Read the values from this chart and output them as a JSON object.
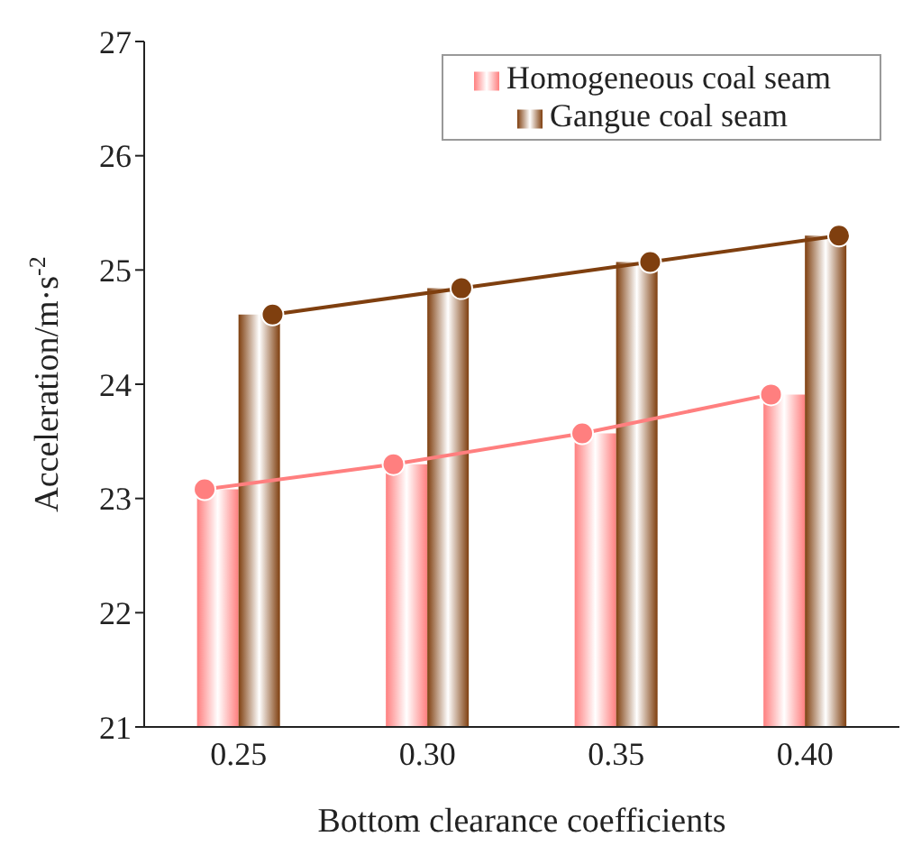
{
  "chart_data": {
    "type": "bar",
    "xlabel": "Bottom clearance coefficients",
    "ylabel": "Acceleration/m·s$^{-2}$",
    "categories": [
      "0.25",
      "0.30",
      "0.35",
      "0.40"
    ],
    "series": [
      {
        "name": "Homogeneous coal seam",
        "color": "#ff7f7f",
        "values": [
          23.08,
          23.3,
          23.57,
          23.91
        ]
      },
      {
        "name": "Gangue coal seam",
        "color": "#7f3f0f",
        "values": [
          24.61,
          24.84,
          25.07,
          25.3
        ]
      },
      {
        "type": "line",
        "color": "#ff7f7f",
        "values": [
          23.08,
          23.3,
          23.57,
          23.91
        ]
      },
      {
        "type": "line",
        "color": "#7f3f0f",
        "values": [
          24.61,
          24.84,
          25.07,
          25.3
        ]
      }
    ],
    "ylim": [
      21,
      27
    ],
    "yticks": [
      21,
      22,
      23,
      24,
      25,
      26,
      27
    ],
    "grid": false,
    "legend": "top right",
    "marker": "circle"
  }
}
